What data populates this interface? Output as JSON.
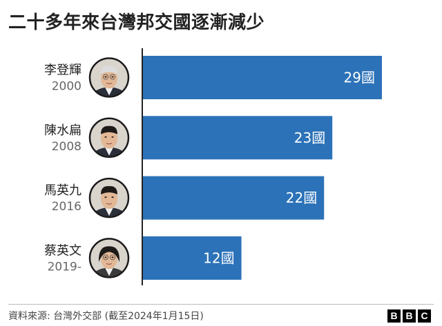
{
  "title": "二十多年來台灣邦交國逐漸減少",
  "source": "資料來源: 台灣外交部 (截至2024年1月15日)",
  "logo": [
    "B",
    "B",
    "C"
  ],
  "colors": {
    "bar": "#2c72b8",
    "axis": "#222222"
  },
  "chart_data": {
    "type": "bar",
    "orientation": "horizontal",
    "title": "二十多年來台灣邦交國逐漸減少",
    "unit": "國",
    "xlim": [
      0,
      29
    ],
    "grid": false,
    "rows": [
      {
        "name": "李登輝",
        "year": "2000",
        "value": 29,
        "label": "29國"
      },
      {
        "name": "陳水扁",
        "year": "2008",
        "value": 23,
        "label": "23國"
      },
      {
        "name": "馬英九",
        "year": "2016",
        "value": 22,
        "label": "22國"
      },
      {
        "name": "蔡英文",
        "year": "2019-",
        "value": 12,
        "label": "12國"
      }
    ]
  }
}
